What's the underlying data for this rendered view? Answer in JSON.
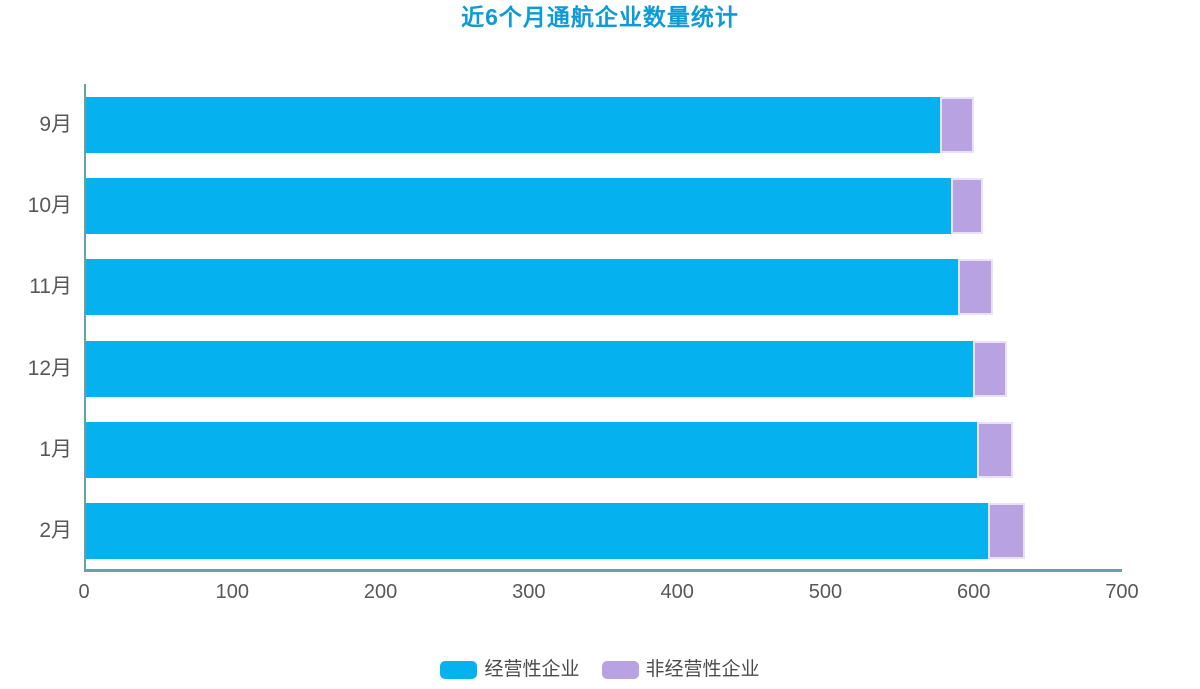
{
  "title": "近6个月通航企业数量统计",
  "colors": {
    "title": "#0d9bd8",
    "operating_series": "#05b1ee",
    "non_operating_series": "#b9a2e1",
    "non_operating_border": "#e9e1f7",
    "axis_line": "#62a3ab",
    "axis_label": "#595757",
    "legend_text": "#4c4c4c",
    "background": "#ffffff"
  },
  "chart_data": {
    "type": "bar",
    "orientation": "horizontal",
    "stacked": true,
    "title": "近6个月通航企业数量统计",
    "categories": [
      "9月",
      "10月",
      "11月",
      "12月",
      "1月",
      "2月"
    ],
    "series": [
      {
        "name": "经营性企业",
        "color": "#05b1ee",
        "values": [
          576,
          583,
          588,
          598,
          601,
          608
        ]
      },
      {
        "name": "非经营性企业",
        "color": "#b9a2e1",
        "values": [
          23,
          22,
          24,
          23,
          24,
          25
        ]
      }
    ],
    "totals": [
      599,
      605,
      612,
      621,
      625,
      633
    ],
    "xlabel": "",
    "ylabel": "",
    "xlim": [
      0,
      700
    ],
    "x_ticks": [
      0,
      100,
      200,
      300,
      400,
      500,
      600,
      700
    ],
    "grid": false,
    "legend_position": "bottom"
  },
  "legend": {
    "items": [
      {
        "label": "经营性企业",
        "color": "#05b1ee"
      },
      {
        "label": "非经营性企业",
        "color": "#b9a2e1"
      }
    ]
  }
}
